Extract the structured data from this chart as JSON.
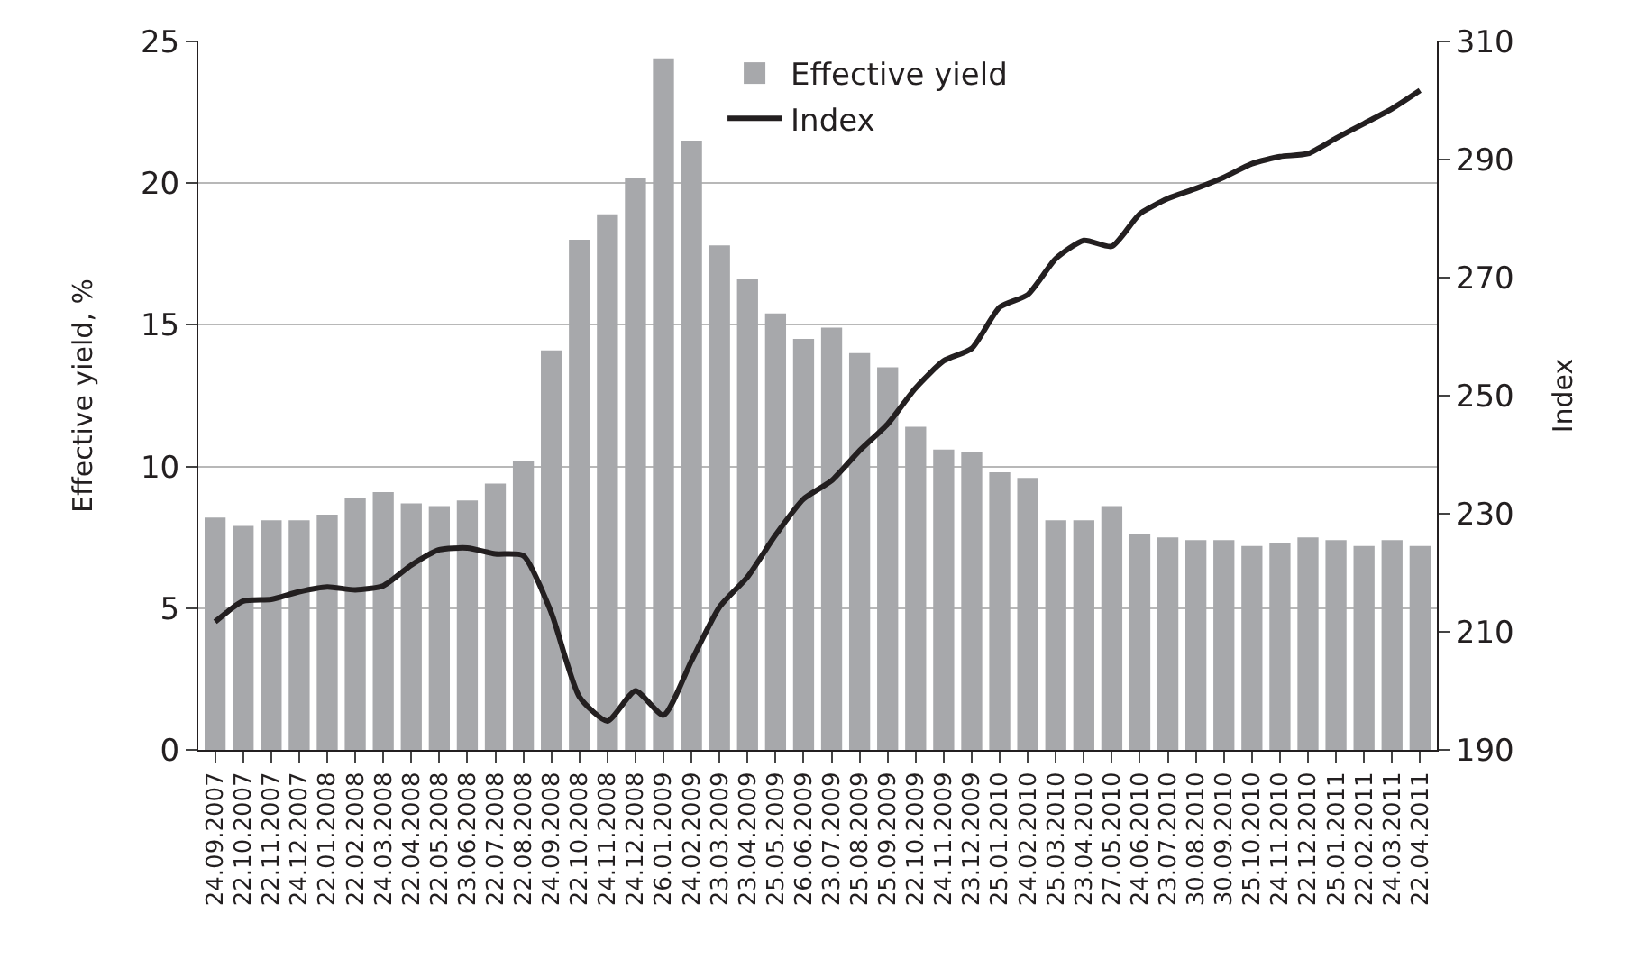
{
  "chart_data": {
    "type": "bar",
    "ylabel": "Effective yield, %",
    "y2label": "Index",
    "categories": [
      "24.09.2007",
      "22.10.2007",
      "22.11.2007",
      "24.12.2007",
      "22.01.2008",
      "22.02.2008",
      "24.03.2008",
      "22.04.2008",
      "22.05.2008",
      "23.06.2008",
      "22.07.2008",
      "22.08.2008",
      "24.09.2008",
      "22.10.2008",
      "24.11.2008",
      "24.12.2008",
      "26.01.2009",
      "24.02.2009",
      "23.03.2009",
      "23.04.2009",
      "25.05.2009",
      "26.06.2009",
      "23.07.2009",
      "25.08.2009",
      "25.09.2009",
      "22.10.2009",
      "24.11.2009",
      "23.12.2009",
      "25.01.2010",
      "24.02.2010",
      "25.03.2010",
      "23.04.2010",
      "27.05.2010",
      "24.06.2010",
      "23.07.2010",
      "30.08.2010",
      "30.09.2010",
      "25.10.2010",
      "24.11.2010",
      "22.12.2010",
      "25.01.2011",
      "22.02.2011",
      "24.03.2011",
      "22.04.2011"
    ],
    "series": [
      {
        "name": "Effective yield",
        "color": "#a7a8ab",
        "values": [
          8.2,
          7.9,
          8.1,
          8.1,
          8.3,
          8.9,
          9.1,
          8.7,
          8.6,
          8.8,
          9.4,
          10.2,
          14.1,
          18.0,
          18.9,
          20.2,
          24.4,
          21.5,
          17.8,
          16.6,
          15.4,
          14.5,
          14.9,
          14.0,
          13.5,
          11.4,
          10.6,
          10.5,
          9.8,
          9.6,
          8.1,
          8.1,
          8.6,
          7.6,
          7.5,
          7.4,
          7.4,
          7.2,
          7.3,
          7.5,
          7.4,
          7.2,
          7.4,
          7.2
        ]
      },
      {
        "name": "Index",
        "type": "line",
        "axis": "y2",
        "color": "#231f20",
        "values": [
          211.7,
          215.2,
          215.5,
          216.8,
          217.6,
          217.1,
          217.8,
          221.3,
          223.9,
          224.2,
          223.2,
          222.9,
          213.2,
          199.0,
          194.9,
          200.0,
          195.9,
          205.1,
          214.2,
          219.3,
          226.4,
          232.5,
          235.6,
          240.7,
          245.2,
          251.3,
          255.9,
          258.0,
          265.0,
          267.1,
          273.2,
          276.3,
          275.3,
          280.8,
          283.4,
          285.1,
          287.0,
          289.3,
          290.5,
          291.0,
          293.6,
          296.1,
          298.6,
          301.7
        ]
      }
    ],
    "ylim": [
      0,
      25
    ],
    "yticks": [
      0,
      5,
      10,
      15,
      20,
      25
    ],
    "y2lim": [
      190,
      310
    ],
    "y2ticks": [
      190,
      210,
      230,
      250,
      270,
      290,
      310
    ],
    "grid": "y",
    "legend": "top",
    "marker": "none",
    "line_style": "solid"
  }
}
